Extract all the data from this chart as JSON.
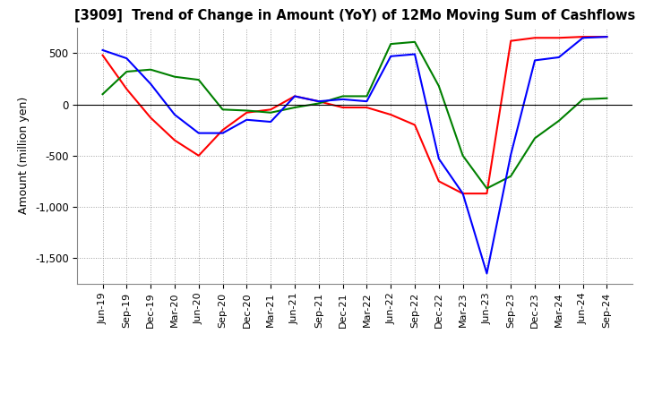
{
  "title": "[3909]  Trend of Change in Amount (YoY) of 12Mo Moving Sum of Cashflows",
  "ylabel": "Amount (million yen)",
  "x_labels": [
    "Jun-19",
    "Sep-19",
    "Dec-19",
    "Mar-20",
    "Jun-20",
    "Sep-20",
    "Dec-20",
    "Mar-21",
    "Jun-21",
    "Sep-21",
    "Dec-21",
    "Mar-22",
    "Jun-22",
    "Sep-22",
    "Dec-22",
    "Mar-23",
    "Jun-23",
    "Sep-23",
    "Dec-23",
    "Mar-24",
    "Jun-24",
    "Sep-24"
  ],
  "operating": [
    480,
    150,
    -130,
    -350,
    -500,
    -250,
    -80,
    -50,
    80,
    30,
    -30,
    -30,
    -100,
    -200,
    -750,
    -870,
    -870,
    620,
    650,
    650,
    660,
    660
  ],
  "investing": [
    100,
    320,
    340,
    270,
    240,
    -50,
    -60,
    -80,
    -30,
    10,
    80,
    80,
    590,
    610,
    180,
    -500,
    -820,
    -700,
    -330,
    -160,
    50,
    60
  ],
  "free": [
    530,
    450,
    200,
    -100,
    -280,
    -280,
    -150,
    -170,
    80,
    30,
    50,
    30,
    470,
    490,
    -530,
    -870,
    -1650,
    -490,
    430,
    460,
    650,
    660
  ],
  "operating_color": "#ff0000",
  "investing_color": "#008000",
  "free_color": "#0000ff",
  "ylim": [
    -1750,
    750
  ],
  "yticks": [
    500,
    0,
    -500,
    -1000,
    -1500
  ],
  "background_color": "#ffffff",
  "grid_color": "#888888"
}
